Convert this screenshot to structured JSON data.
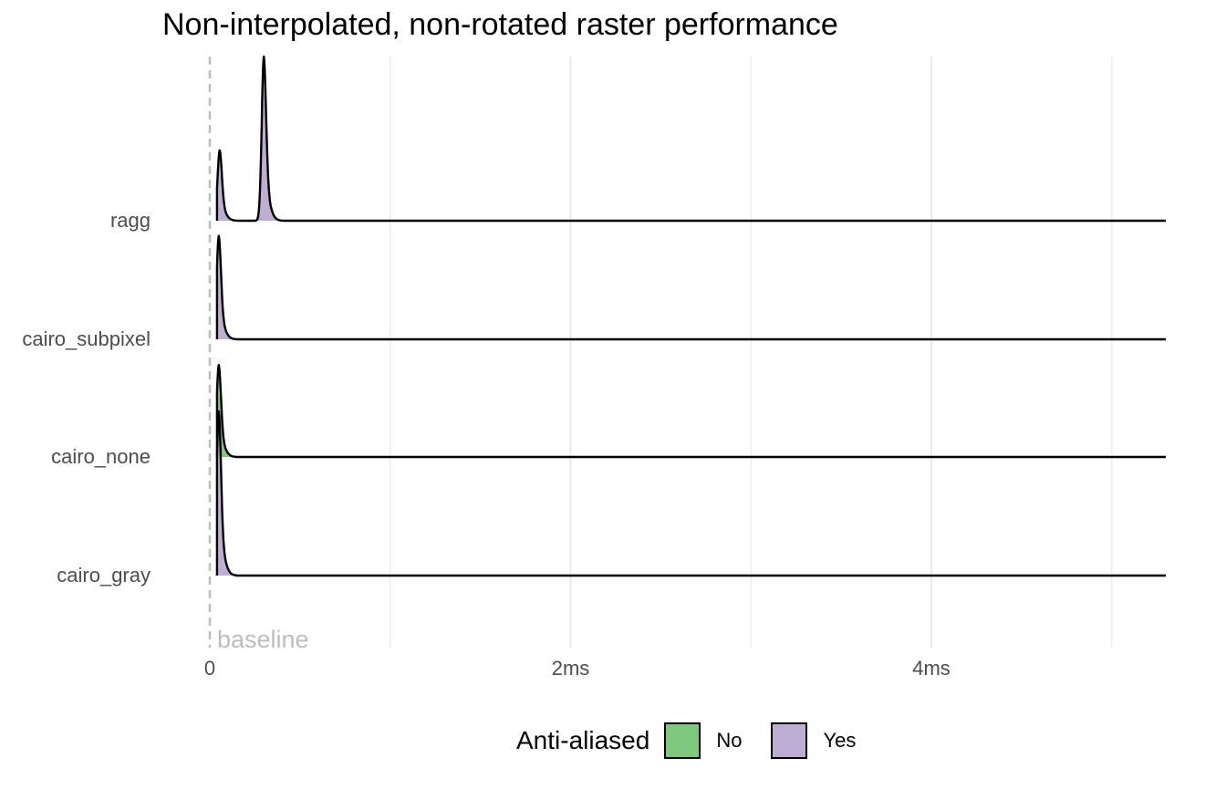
{
  "chart_data": {
    "type": "area",
    "subtype": "ridgeline-density",
    "title": "Non-interpolated, non-rotated raster performance",
    "xlabel": "",
    "ylabel": "",
    "x_unit": "ms",
    "xlim": [
      0,
      5.3
    ],
    "x_ticks": [
      {
        "value": 0,
        "label": "0"
      },
      {
        "value": 2,
        "label": "2ms"
      },
      {
        "value": 4,
        "label": "4ms"
      }
    ],
    "x_minor_gridlines": [
      1,
      3,
      5
    ],
    "grid": true,
    "baseline": {
      "value": 0,
      "label": "baseline"
    },
    "legend": {
      "title": "Anti-aliased",
      "position": "bottom",
      "entries": [
        {
          "label": "No",
          "color": "#7fc97f"
        },
        {
          "label": "Yes",
          "color": "#beaed4"
        }
      ]
    },
    "categories": [
      "ragg",
      "cairo_subpixel",
      "cairo_none",
      "cairo_gray"
    ],
    "series": [
      {
        "category": "ragg",
        "anti_aliased": "Yes",
        "peaks": [
          {
            "x": 0.055,
            "height": 0.43
          },
          {
            "x": 0.3,
            "height": 1.0
          }
        ],
        "x_range": [
          0.04,
          0.75
        ]
      },
      {
        "category": "cairo_subpixel",
        "anti_aliased": "Yes",
        "peaks": [
          {
            "x": 0.05,
            "height": 0.63
          }
        ],
        "x_range": [
          0.04,
          0.15
        ]
      },
      {
        "category": "cairo_none",
        "anti_aliased": "No",
        "peaks": [
          {
            "x": 0.05,
            "height": 0.56
          }
        ],
        "x_range": [
          0.04,
          0.15
        ]
      },
      {
        "category": "cairo_gray",
        "anti_aliased": "Yes",
        "peaks": [
          {
            "x": 0.05,
            "height": 1.0
          }
        ],
        "x_range": [
          0.04,
          0.15
        ]
      }
    ]
  }
}
